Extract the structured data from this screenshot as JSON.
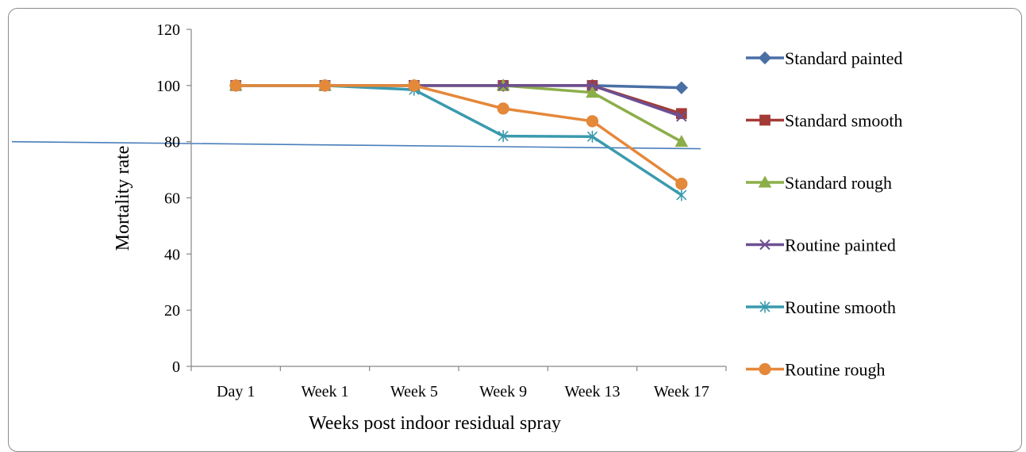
{
  "chart_data": {
    "type": "line",
    "categories": [
      "Day 1",
      "Week 1",
      "Week 5",
      "Week 9",
      "Week 13",
      "Week 17"
    ],
    "xlabel": "Weeks post indoor residual spray",
    "ylabel": "Mortality rate",
    "ylim": [
      0,
      120
    ],
    "yticks": [
      0,
      20,
      40,
      60,
      80,
      100,
      120
    ],
    "grid": false,
    "legend_position": "right",
    "reference_line": {
      "y_start": 80,
      "y_end": 77.5,
      "color": "#4a7ebb"
    },
    "series": [
      {
        "name": "Standard painted",
        "values": [
          100,
          100,
          100,
          100,
          100,
          99.2
        ],
        "color": "#4a6fa5",
        "marker": "diamond"
      },
      {
        "name": "Standard smooth",
        "values": [
          100,
          100,
          100,
          100,
          100,
          90
        ],
        "color": "#a33b36",
        "marker": "square"
      },
      {
        "name": "Standard rough",
        "values": [
          100,
          100,
          100,
          100,
          97.5,
          80
        ],
        "color": "#8cae4a",
        "marker": "triangle"
      },
      {
        "name": "Routine painted",
        "values": [
          100,
          100,
          100,
          100,
          100,
          89
        ],
        "color": "#6d4f92",
        "marker": "x"
      },
      {
        "name": "Routine smooth",
        "values": [
          100,
          100,
          98.5,
          82,
          81.8,
          61
        ],
        "color": "#3a9aae",
        "marker": "star"
      },
      {
        "name": "Routine rough",
        "values": [
          100,
          100,
          100,
          91.8,
          87.3,
          65
        ],
        "color": "#e4883a",
        "marker": "circle"
      }
    ]
  }
}
